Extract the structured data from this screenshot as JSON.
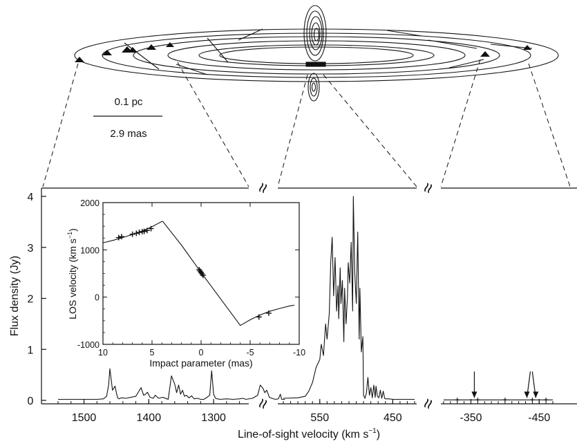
{
  "chart_data": [
    {
      "type": "line",
      "panel": "main-spectrum",
      "xlabel": "Line-of-sight velocity (km s",
      "xlabel_sup": "−1",
      "xlabel_close": ")",
      "ylabel": "Flux density (Jy)",
      "ylim": [
        0,
        4
      ],
      "y_ticks": [
        "0",
        "1",
        "2",
        "3",
        "4"
      ],
      "x_segments": [
        {
          "name": "redshifted",
          "xlim": [
            1540,
            1250
          ],
          "x_ticks": [
            "1500",
            "1400",
            "1300"
          ]
        },
        {
          "name": "systemic",
          "xlim": [
            600,
            420
          ],
          "x_ticks": [
            "550",
            "450"
          ]
        },
        {
          "name": "blueshifted",
          "xlim": [
            -310,
            -470
          ],
          "x_ticks": [
            "-350",
            "-450"
          ]
        }
      ],
      "series": [
        {
          "segment": "redshifted",
          "x": [
            1540,
            1480,
            1470,
            1465,
            1462,
            1460,
            1456,
            1452,
            1450,
            1448,
            1446,
            1442,
            1435,
            1420,
            1412,
            1408,
            1405,
            1402,
            1398,
            1393,
            1390,
            1385,
            1378,
            1372,
            1370,
            1365,
            1360,
            1357,
            1354,
            1351,
            1348,
            1345,
            1342,
            1338,
            1334,
            1330,
            1325,
            1320,
            1315,
            1310,
            1306,
            1303,
            1300,
            1297,
            1294,
            1290,
            1280,
            1270,
            1260,
            1255,
            1250,
            1240,
            1232,
            1228,
            1224,
            1221,
            1218,
            1214,
            1210,
            1205,
            1200,
            1197,
            1195,
            1192,
            1190
          ],
          "y": [
            0.02,
            0.02,
            0.03,
            0.08,
            0.3,
            0.62,
            0.2,
            0.28,
            0.15,
            0.05,
            0.03,
            0.05,
            0.04,
            0.08,
            0.25,
            0.1,
            0.12,
            0.16,
            0.06,
            0.04,
            0.1,
            0.04,
            0.06,
            0.03,
            0.02,
            0.48,
            0.32,
            0.15,
            0.3,
            0.12,
            0.2,
            0.08,
            0.1,
            0.05,
            0.09,
            0.03,
            0.04,
            0.02,
            0.02,
            0.06,
            0.1,
            0.58,
            0.12,
            0.04,
            0.03,
            0.02,
            0.03,
            0.02,
            0.03,
            0.04,
            0.02,
            0.04,
            0.1,
            0.3,
            0.24,
            0.15,
            0.2,
            0.06,
            0.04,
            0.02,
            0.03,
            0.12,
            0.02,
            0.02,
            0.02
          ]
        },
        {
          "segment": "systemic",
          "x": [
            600,
            580,
            570,
            565,
            560,
            555,
            550,
            548,
            545,
            542,
            540,
            537,
            535,
            533,
            531,
            529,
            527,
            525,
            524,
            522,
            521,
            519,
            517,
            516,
            514,
            512,
            511,
            509,
            507,
            505,
            504,
            502,
            500,
            498,
            496,
            495,
            493,
            491,
            490,
            488,
            486,
            484,
            482,
            480,
            478,
            476,
            474,
            473,
            471,
            469,
            467,
            465,
            463,
            461,
            460,
            455,
            450,
            440,
            420
          ],
          "y": [
            0.04,
            0.05,
            0.08,
            0.18,
            0.35,
            0.65,
            0.8,
            1.1,
            0.88,
            1.5,
            1.2,
            1.7,
            2.7,
            3.2,
            2.05,
            2.8,
            1.75,
            2.25,
            1.6,
            2.6,
            1.9,
            2.35,
            1.15,
            2.2,
            1.5,
            2.05,
            2.7,
            2.3,
            3.1,
            1.75,
            4.0,
            2.5,
            1.9,
            3.3,
            1.2,
            2.2,
            0.95,
            1.25,
            0.1,
            0.04,
            0.15,
            0.45,
            0.1,
            0.25,
            0.05,
            0.3,
            0.06,
            0.28,
            0.08,
            0.05,
            0.2,
            0.04,
            0.18,
            0.04,
            0.03,
            0.03,
            0.02,
            0.02,
            0.02
          ]
        },
        {
          "segment": "blueshifted",
          "x": [
            -310,
            -470
          ],
          "y": [
            0.01,
            0.01
          ]
        }
      ],
      "points_on_baseline": [
        -330,
        -360,
        -400,
        -440,
        -460
      ],
      "arrows_at": [
        -355,
        -432,
        -445
      ]
    },
    {
      "type": "line",
      "panel": "inset",
      "xlabel": "Impact parameter (mas)",
      "ylabel": "LOS velocity (km s",
      "ylabel_sup": "−1",
      "ylabel_close": ")",
      "xlim": [
        10,
        -10
      ],
      "ylim": [
        -1000,
        2000
      ],
      "x_ticks": [
        "10",
        "5",
        "0",
        "-5",
        "-10"
      ],
      "y_ticks": [
        "-1000",
        "0",
        "1000",
        "2000"
      ],
      "model_curve": {
        "x": [
          10,
          9,
          8,
          7,
          6,
          5,
          4,
          3.9,
          2,
          0,
          -2,
          -4,
          -5,
          -6,
          -7,
          -8,
          -9,
          -9.5
        ],
        "y": [
          1150,
          1200,
          1260,
          1325,
          1400,
          1490,
          1600,
          1600,
          1100,
          520,
          -40,
          -600,
          -480,
          -380,
          -300,
          -240,
          -190,
          -170
        ]
      },
      "data_points": {
        "x": [
          8.4,
          8.1,
          7.0,
          6.6,
          6.3,
          6.0,
          5.8,
          5.5,
          5.1,
          0.2,
          0.1,
          0.0,
          -0.1,
          -0.2,
          -5.9,
          -6.9
        ],
        "y": [
          1260,
          1280,
          1330,
          1350,
          1370,
          1385,
          1390,
          1410,
          1450,
          580,
          550,
          520,
          490,
          460,
          -420,
          -340
        ]
      }
    }
  ],
  "scale_bar": {
    "top_label": "0.1 pc",
    "bottom_label": "2.9 mas"
  },
  "break_glyph": "≈"
}
